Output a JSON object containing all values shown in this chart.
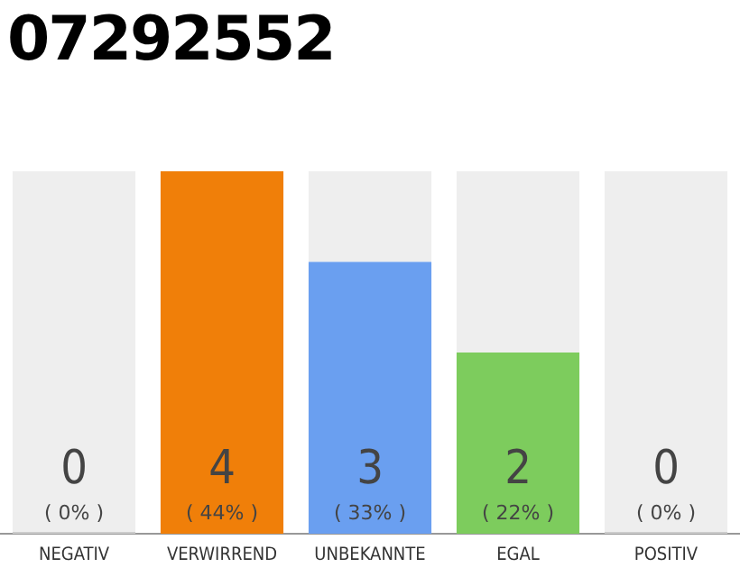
{
  "chart_data": {
    "type": "bar",
    "title": "07292552",
    "categories": [
      "NEGATIV",
      "VERWIRREND",
      "UNBEKANNTE",
      "EGAL",
      "POSITIV"
    ],
    "stacked": true,
    "series": [
      {
        "colors": [
          "#cccccc",
          "#f07f09",
          "#6a9ff0",
          "#7dcc5d",
          "#cccccc"
        ],
        "values": [
          0,
          4,
          3,
          2,
          0
        ],
        "value_labels": [
          "0\n( 0% )",
          "4\n( 44% )",
          "3\n( 33% )",
          "2\n( 22% )",
          "0\n( 0% )"
        ]
      },
      {
        "color": "#eeeeee",
        "values": [
          4,
          0,
          1,
          2,
          4
        ]
      }
    ],
    "ylim": [
      0,
      4
    ],
    "tick_labels": "x",
    "grid": false,
    "legend": false
  }
}
